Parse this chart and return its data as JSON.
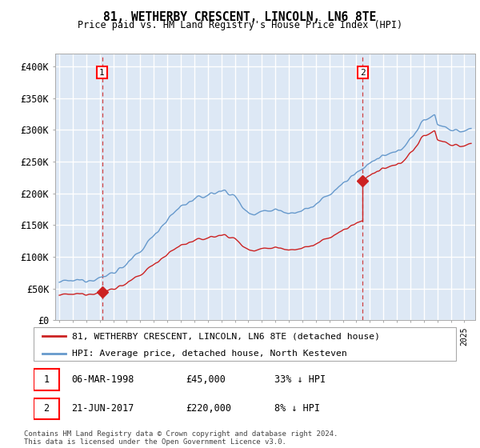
{
  "title": "81, WETHERBY CRESCENT, LINCOLN, LN6 8TE",
  "subtitle": "Price paid vs. HM Land Registry's House Price Index (HPI)",
  "ylim": [
    0,
    420000
  ],
  "yticks": [
    0,
    50000,
    100000,
    150000,
    200000,
    250000,
    300000,
    350000,
    400000
  ],
  "ytick_labels": [
    "£0",
    "£50K",
    "£100K",
    "£150K",
    "£200K",
    "£250K",
    "£300K",
    "£350K",
    "£400K"
  ],
  "xlim_left": 1994.7,
  "xlim_right": 2025.8,
  "background_color": "#dde8f5",
  "grid_color": "#ffffff",
  "hpi_color": "#6699cc",
  "price_color": "#cc2222",
  "sale1_x": 1998.17,
  "sale1_y": 45000,
  "sale2_x": 2017.47,
  "sale2_y": 220000,
  "legend_entries": [
    "81, WETHERBY CRESCENT, LINCOLN, LN6 8TE (detached house)",
    "HPI: Average price, detached house, North Kesteven"
  ],
  "annotation1_date": "06-MAR-1998",
  "annotation1_price": "£45,000",
  "annotation1_hpi": "33% ↓ HPI",
  "annotation2_date": "21-JUN-2017",
  "annotation2_price": "£220,000",
  "annotation2_hpi": "8% ↓ HPI",
  "footer": "Contains HM Land Registry data © Crown copyright and database right 2024.\nThis data is licensed under the Open Government Licence v3.0."
}
